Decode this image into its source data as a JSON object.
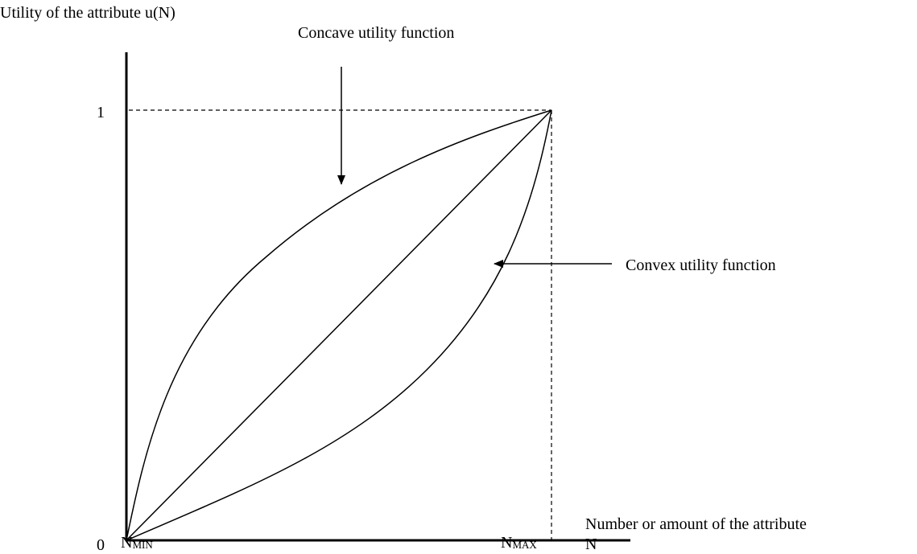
{
  "y_axis": {
    "label": "Utility of the attribute u(N)",
    "ticks": [
      "0",
      "1"
    ]
  },
  "x_axis": {
    "label": "Number or amount of the attribute",
    "label_line2": "N",
    "ticks": [
      {
        "base": "N",
        "sub": "MIN"
      },
      {
        "base": "N",
        "sub": "MAX"
      }
    ]
  },
  "annotations": [
    "Concave utility function",
    "Convex utility function"
  ]
}
